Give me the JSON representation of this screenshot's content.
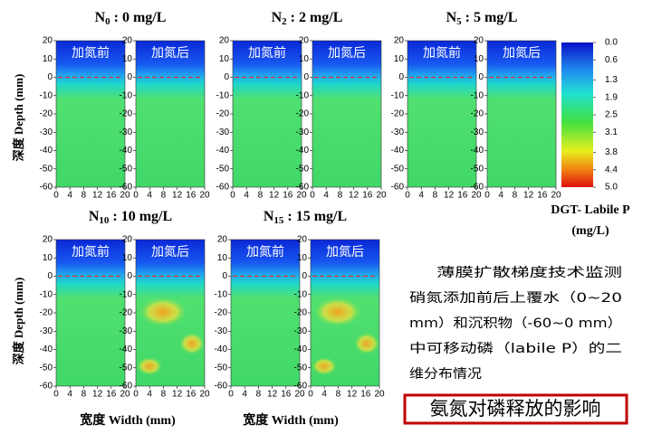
{
  "axes": {
    "y_label": "深度 Depth (mm)",
    "x_label": "宽度 Width (mm)",
    "ylim": [
      -60,
      20
    ],
    "yticks": [
      20,
      10,
      0,
      -10,
      -20,
      -30,
      -40,
      -50,
      -60
    ],
    "xlim": [
      0,
      20
    ],
    "xticks": [
      0,
      4,
      8,
      12,
      16,
      20
    ]
  },
  "groups": [
    {
      "symbol": "N",
      "subscript": "0",
      "concentration": " : 0 mg/L",
      "panels": [
        "加氮前",
        "加氮后"
      ]
    },
    {
      "symbol": "N",
      "subscript": "2",
      "concentration": " : 2 mg/L",
      "panels": [
        "加氮前",
        "加氮后"
      ]
    },
    {
      "symbol": "N",
      "subscript": "5",
      "concentration": " : 5 mg/L",
      "panels": [
        "加氮前",
        "加氮后"
      ]
    },
    {
      "symbol": "N",
      "subscript": "10",
      "concentration": " : 10 mg/L",
      "panels": [
        "加氮前",
        "加氮后"
      ]
    },
    {
      "symbol": "N",
      "subscript": "15",
      "concentration": " : 15 mg/L",
      "panels": [
        "加氮前",
        "加氮后"
      ]
    }
  ],
  "colorbar": {
    "label": "DGT- Labile P",
    "unit": "(mg/L)",
    "lim": [
      0,
      5
    ],
    "ticks": [
      {
        "value": 0,
        "label": "0.0"
      },
      0.6,
      1.3,
      1.9,
      2.5,
      3.1,
      3.8,
      4.4,
      {
        "value": 5,
        "label": "5.0"
      }
    ]
  },
  "description": [
    "薄膜扩散梯度技术监测",
    "硝氮添加前后上覆水（0~20",
    "mm）和沉积物（-60~0 mm）",
    "中可移动磷（labile P）的二",
    "维分布情况"
  ],
  "caption": "氨氮对磷释放的影响"
}
